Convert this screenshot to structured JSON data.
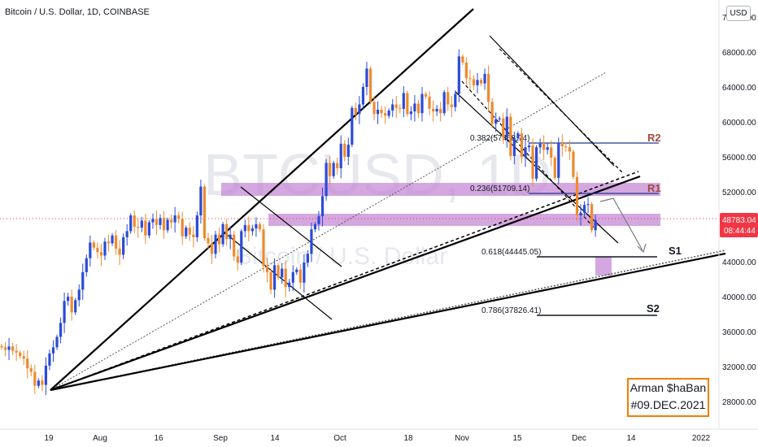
{
  "header": {
    "title": "Bitcoin / U.S. Dollar, 1D, COINBASE",
    "currency_button": "USD"
  },
  "watermark": {
    "symbol": "BTCUSD, 1D",
    "name": "Bitcoin / U.S. Dollar"
  },
  "signature": {
    "line1": "Arman $haBan",
    "line2": "#09.DEC.2021"
  },
  "price_label": {
    "price": "48783.04",
    "countdown": "08:44:44"
  },
  "colors": {
    "up": "#2a4bd7",
    "down": "#ef8a2e",
    "zone": "#c58ad6",
    "r2": "#a04a3a",
    "r1": "#a04a3a",
    "support": "#131722",
    "price_badge": "#f23645",
    "signature_border": "#f57c00"
  },
  "chart_data": {
    "type": "candlestick",
    "symbol": "Bitcoin / U.S. Dollar",
    "interval": "1D",
    "exchange": "COINBASE",
    "y_axis": {
      "ylim": [
        26000,
        74000
      ],
      "ticks": [
        "72000.00",
        "68000.00",
        "64000.00",
        "60000.00",
        "56000.00",
        "52000.00",
        "48000.00",
        "44000.00",
        "40000.00",
        "36000.00",
        "32000.00",
        "28000.00"
      ]
    },
    "x_axis": {
      "ticks": [
        "19",
        "Aug",
        "16",
        "Sep",
        "14",
        "Oct",
        "18",
        "Nov",
        "15",
        "Dec",
        "14",
        "2022"
      ]
    },
    "closes": [
      34200,
      33900,
      34300,
      33800,
      33600,
      33200,
      32900,
      31800,
      31400,
      29800,
      30400,
      29900,
      32100,
      33500,
      34200,
      35400,
      37000,
      39500,
      40000,
      38200,
      39600,
      40800,
      42800,
      44400,
      46200,
      45600,
      45100,
      44700,
      46300,
      46100,
      47000,
      45500,
      44800,
      46800,
      47500,
      49300,
      48000,
      47900,
      48700,
      47000,
      48500,
      48900,
      48200,
      49000,
      47600,
      48800,
      48500,
      49300,
      48900,
      46900,
      47900,
      47100,
      46800,
      49300,
      52600,
      46700,
      46100,
      44900,
      47100,
      46000,
      48300,
      46600,
      47100,
      44600,
      43900,
      47500,
      48200,
      47500,
      47800,
      48300,
      47700,
      43500,
      42800,
      40800,
      43600,
      42200,
      43200,
      41100,
      41600,
      42800,
      43100,
      41600,
      43900,
      44900,
      47700,
      48300,
      49200,
      51500,
      55300,
      53800,
      55300,
      54700,
      57500,
      56000,
      57400,
      61600,
      60900,
      62000,
      64000,
      66100,
      62300,
      60900,
      61400,
      61000,
      60700,
      61300,
      62000,
      61600,
      61500,
      63300,
      60900,
      61200,
      62100,
      61000,
      63200,
      62900,
      61500,
      61200,
      61500,
      61000,
      63400,
      62000,
      61700,
      63200,
      67500,
      66800,
      65000,
      64900,
      64200,
      64800,
      64400,
      65500,
      62300,
      59800,
      60300,
      60400,
      58200,
      60600,
      56100,
      58100,
      58700,
      56000,
      57100,
      57300,
      53500,
      57100,
      57500,
      56800,
      57100,
      55900,
      53600,
      57600,
      57200,
      57100,
      56600,
      53700,
      49300,
      49600,
      50500,
      50600,
      47600,
      48783
    ],
    "levels": [
      {
        "name": "R2",
        "price": 57467
      },
      {
        "name": "R1",
        "price": 51709
      },
      {
        "name": "S1",
        "price": 44445
      },
      {
        "name": "S2",
        "price": 37826
      }
    ],
    "fib": [
      {
        "label": "0.382(57468.74)"
      },
      {
        "label": "0.236(51709.14)"
      },
      {
        "label": "0.618(44445.05)"
      },
      {
        "label": "0.786(37826.41)"
      }
    ],
    "zones": [
      {
        "from": 51800,
        "to": 52800
      },
      {
        "from": 48000,
        "to": 49300
      },
      {
        "from": 42300,
        "to": 44500
      }
    ],
    "last_price": 48783.04
  }
}
